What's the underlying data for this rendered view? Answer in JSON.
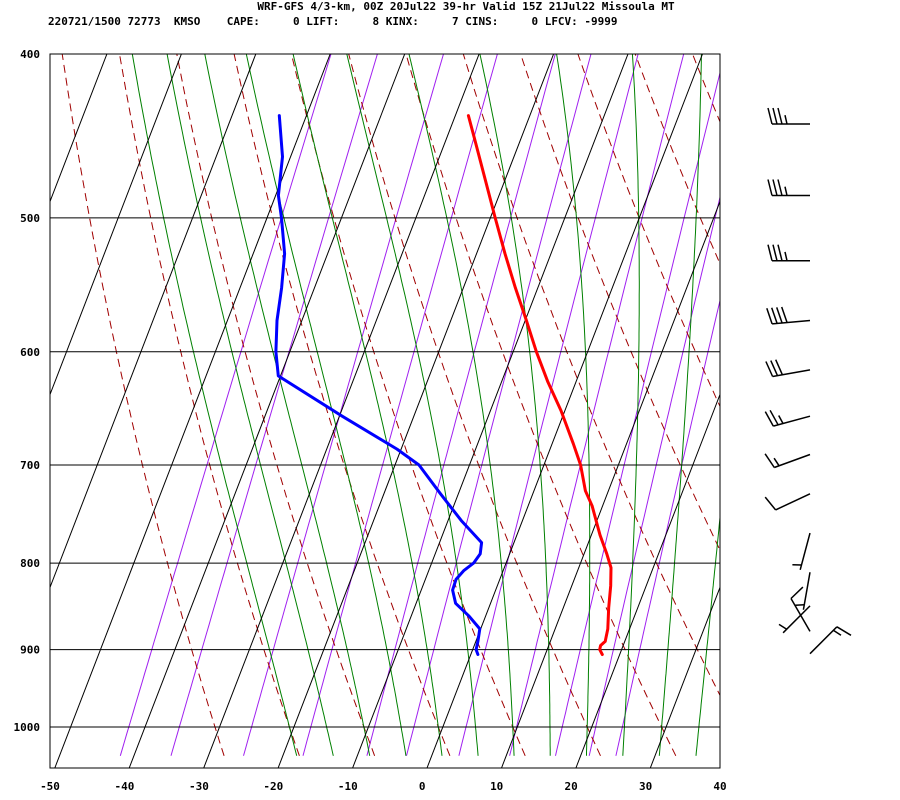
{
  "header": {
    "line1": "WRF-GFS 4/3-km, 00Z 20Jul22 39-hr Valid 15Z 21Jul22 Missoula MT",
    "line2": "220721/1500 72773  KMSO    CAPE:     0 LIFT:     8 KINX:     7 CINS:     0 LFCV: -9999"
  },
  "chart_data": {
    "type": "line",
    "diagram": "skew-T log-p",
    "title": "WRF-GFS 4/3-km, 00Z 20Jul22 39-hr Valid 15Z 21Jul22 Missoula MT",
    "xlabel": "",
    "ylabel": "",
    "x_units": "temperature (C)",
    "y_units": "pressure (hPa)",
    "y_scale": "log",
    "xlim": [
      -50,
      40
    ],
    "ylim": [
      1040,
      400
    ],
    "x_ticks": [
      -50,
      -40,
      -30,
      -20,
      -10,
      0,
      10,
      20,
      30,
      40
    ],
    "y_ticks": [
      400,
      500,
      600,
      700,
      800,
      900,
      1000
    ],
    "grid": true,
    "stats": {
      "station": "KMSO",
      "id": 72773,
      "CAPE": 0,
      "LIFT": 8,
      "KINX": 7,
      "CINS": 0,
      "LFCV": -9999
    },
    "isotherms": [
      -100,
      -90,
      -80,
      -70,
      -60,
      -50,
      -40,
      -30,
      -20,
      -10,
      0,
      10,
      20,
      30,
      40
    ],
    "dry_adiabats": [
      -30,
      -20,
      -10,
      0,
      10,
      20,
      30,
      40,
      50,
      60,
      70,
      80,
      90,
      100,
      110,
      120,
      130
    ],
    "moist_adiabats": [
      -20,
      -15,
      -10,
      -5,
      0,
      5,
      10,
      15,
      20,
      25,
      30,
      35
    ],
    "mixing_ratio_lines": [
      0.1,
      0.2,
      0.5,
      1,
      2,
      3,
      5,
      8,
      12,
      16,
      20
    ],
    "series": [
      {
        "name": "",
        "role": "temperature",
        "color": "#ff0000",
        "points": [
          [
            906,
            18.2
          ],
          [
            900,
            17.6
          ],
          [
            895,
            17.5
          ],
          [
            890,
            17.9
          ],
          [
            875,
            17.6
          ],
          [
            850,
            16.6
          ],
          [
            825,
            15.7
          ],
          [
            805,
            14.8
          ],
          [
            790,
            13.5
          ],
          [
            770,
            11.6
          ],
          [
            740,
            9.0
          ],
          [
            725,
            7.3
          ],
          [
            700,
            5.3
          ],
          [
            680,
            3.2
          ],
          [
            650,
            -0.2
          ],
          [
            625,
            -3.5
          ],
          [
            600,
            -6.6
          ],
          [
            575,
            -9.6
          ],
          [
            550,
            -12.8
          ],
          [
            525,
            -16.0
          ],
          [
            500,
            -19.2
          ],
          [
            475,
            -22.5
          ],
          [
            450,
            -26.0
          ],
          [
            435,
            -28.2
          ]
        ]
      },
      {
        "name": "",
        "role": "dewpoint",
        "color": "#0000ff",
        "points": [
          [
            906,
            1.5
          ],
          [
            900,
            1.0
          ],
          [
            890,
            0.8
          ],
          [
            875,
            0.4
          ],
          [
            860,
            -1.7
          ],
          [
            845,
            -4.2
          ],
          [
            830,
            -5.3
          ],
          [
            818,
            -5.4
          ],
          [
            808,
            -4.8
          ],
          [
            800,
            -3.9
          ],
          [
            790,
            -3.5
          ],
          [
            778,
            -3.9
          ],
          [
            755,
            -7.8
          ],
          [
            728,
            -12.0
          ],
          [
            700,
            -16.4
          ],
          [
            685,
            -20.2
          ],
          [
            655,
            -29.3
          ],
          [
            620,
            -40.0
          ],
          [
            600,
            -41.6
          ],
          [
            575,
            -43.1
          ],
          [
            550,
            -44.2
          ],
          [
            525,
            -45.6
          ],
          [
            500,
            -47.9
          ],
          [
            485,
            -49.5
          ],
          [
            460,
            -51.0
          ],
          [
            435,
            -53.6
          ]
        ]
      }
    ],
    "wind_barbs": [
      {
        "p": 440,
        "dir": 270,
        "kt": 35
      },
      {
        "p": 485,
        "dir": 270,
        "kt": 35
      },
      {
        "p": 530,
        "dir": 270,
        "kt": 35
      },
      {
        "p": 575,
        "dir": 265,
        "kt": 40
      },
      {
        "p": 615,
        "dir": 260,
        "kt": 30
      },
      {
        "p": 655,
        "dir": 255,
        "kt": 25
      },
      {
        "p": 690,
        "dir": 250,
        "kt": 15
      },
      {
        "p": 728,
        "dir": 245,
        "kt": 10
      },
      {
        "p": 768,
        "dir": 195,
        "kt": 5
      },
      {
        "p": 810,
        "dir": 190,
        "kt": 5
      },
      {
        "p": 848,
        "dir": 225,
        "kt": 5
      },
      {
        "p": 878,
        "dir": 330,
        "kt": 10
      },
      {
        "p": 905,
        "dir": 45,
        "kt": 15
      }
    ]
  }
}
